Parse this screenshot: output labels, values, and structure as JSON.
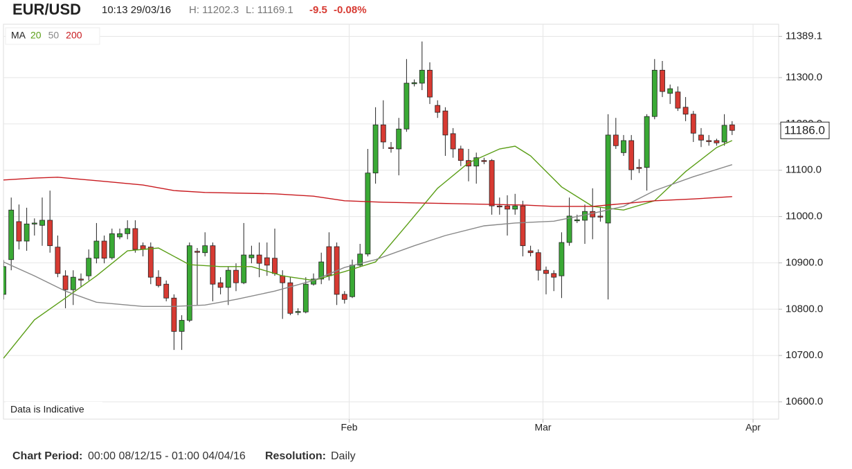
{
  "header": {
    "symbol": "EUR/USD",
    "datetime": "10:13 29/03/16",
    "high": "H: 11202.3",
    "low": "L: 11169.1",
    "change": "-9.5",
    "change_pct": "-0.08%"
  },
  "chart_data": {
    "type": "candlestick",
    "up_color": "#3aa935",
    "down_color": "#d73a32",
    "open": [
      10832,
      10907,
      10989,
      10947,
      10984,
      10981,
      10992,
      10934,
      10872,
      10842,
      10865,
      10872,
      10910,
      10947,
      10911,
      10956,
      10963,
      10974,
      10937,
      10934,
      10869,
      10854,
      10824,
      10752,
      10776,
      10925,
      10922,
      10937,
      10857,
      10847,
      10884,
      10857,
      10911,
      10917,
      10911,
      10910,
      10872,
      10857,
      10794,
      10794,
      10854,
      10865,
      10935,
      10935,
      10832,
      10827,
      10895,
      10919,
      11094,
      11198,
      11149,
      11146,
      11189,
      11288,
      11288,
      11316,
      11240,
      11228,
      11179,
      11146,
      11121,
      11109,
      11121,
      11121,
      11023,
      11023,
      11016,
      11023,
      10926,
      10922,
      10884,
      10877,
      10872,
      10944,
      10992,
      10992,
      11011,
      11001,
      10986,
      11176,
      11138,
      11164,
      11106,
      11106,
      11216,
      11316,
      11266,
      11269,
      11236,
      11221,
      11176,
      11164,
      11164,
      11161,
      11198
    ],
    "high": [
      10906,
      11041,
      11026,
      11019,
      10996,
      11041,
      11056,
      10959,
      10884,
      10884,
      10877,
      10929,
      10986,
      10959,
      10974,
      10974,
      10992,
      10992,
      10944,
      10944,
      10884,
      10862,
      10832,
      10787,
      10944,
      10932,
      10966,
      10944,
      10869,
      10892,
      10899,
      10986,
      10937,
      10944,
      10944,
      10974,
      10884,
      10869,
      10802,
      10869,
      10877,
      10922,
      10966,
      10944,
      10839,
      10907,
      10941,
      11146,
      11236,
      11251,
      11161,
      11213,
      11340,
      11296,
      11378,
      11333,
      11251,
      11236,
      11191,
      11153,
      11146,
      11138,
      11127,
      11124,
      11041,
      11046,
      11049,
      11034,
      10937,
      10929,
      10892,
      10884,
      10966,
      11041,
      11004,
      11026,
      11061,
      11019,
      11221,
      11213,
      11176,
      11176,
      11124,
      11221,
      11340,
      11336,
      11285,
      11281,
      11258,
      11228,
      11191,
      11176,
      11168,
      11221,
      11206
    ],
    "low": [
      10821,
      10884,
      10929,
      10926,
      10959,
      10937,
      10922,
      10869,
      10802,
      10809,
      10847,
      10862,
      10899,
      10899,
      10907,
      10951,
      10951,
      10922,
      10914,
      10854,
      10847,
      10817,
      10712,
      10712,
      10772,
      10809,
      10914,
      10817,
      10832,
      10809,
      10839,
      10854,
      10899,
      10869,
      10872,
      10872,
      10779,
      10787,
      10787,
      10791,
      10851,
      10854,
      10862,
      10809,
      10812,
      10824,
      10892,
      10914,
      11071,
      11146,
      11138,
      11089,
      11183,
      11281,
      11273,
      11243,
      11213,
      11131,
      11127,
      11109,
      11076,
      11071,
      11113,
      11004,
      11004,
      10959,
      11004,
      10914,
      10914,
      10862,
      10832,
      10839,
      10824,
      10937,
      10986,
      10941,
      10951,
      10989,
      10821,
      11146,
      11131,
      11079,
      11094,
      11056,
      11210,
      11258,
      11243,
      11228,
      11206,
      11161,
      11150,
      11153,
      11153,
      11153,
      11176
    ],
    "close": [
      10892,
      11014,
      10947,
      10984,
      10986,
      10992,
      10937,
      10877,
      10842,
      10869,
      10864,
      10910,
      10947,
      10910,
      10963,
      10963,
      10974,
      10929,
      10929,
      10869,
      10851,
      10824,
      10752,
      10776,
      10937,
      10924,
      10937,
      10854,
      10847,
      10884,
      10857,
      10917,
      10917,
      10899,
      10895,
      10877,
      10857,
      10791,
      10795,
      10854,
      10865,
      10902,
      10872,
      10832,
      10821,
      10895,
      10919,
      11094,
      11198,
      11161,
      11148,
      11189,
      11288,
      11289,
      11316,
      11258,
      11225,
      11176,
      11146,
      11121,
      11109,
      11127,
      11120,
      11023,
      11022,
      11016,
      11023,
      10937,
      10922,
      10884,
      10877,
      10869,
      10944,
      11001,
      10993,
      11011,
      10999,
      11000,
      11176,
      11153,
      11164,
      11101,
      11105,
      11216,
      11316,
      11270,
      11276,
      11234,
      11221,
      11180,
      11165,
      11163,
      11159,
      11197,
      11186
    ],
    "xlim": [
      0,
      100
    ],
    "xticks": [
      {
        "value": 44.6,
        "label": "Feb"
      },
      {
        "value": 69.6,
        "label": "Mar"
      },
      {
        "value": 96.7,
        "label": "Apr"
      }
    ],
    "ylim": [
      10562.6,
      11415.2
    ],
    "yticks": [
      11389.1,
      {
        "value": 11300,
        "label": "11300.0"
      },
      {
        "value": 11200,
        "label": "11200.0"
      },
      {
        "value": 11100,
        "label": "11100.0"
      },
      {
        "value": 11000,
        "label": "11000.0"
      },
      {
        "value": 10900,
        "label": "10900.0"
      },
      {
        "value": 10800,
        "label": "10800.0"
      },
      {
        "value": 10700,
        "label": "10700.0"
      },
      {
        "value": 10600,
        "label": "10600.0"
      }
    ],
    "grid": true,
    "legend_title": "MA",
    "series": [
      {
        "name": "20",
        "color": "#5a9e16",
        "x": [
          0,
          4,
          8,
          12,
          16,
          20,
          24,
          28,
          32,
          36,
          40,
          44,
          48,
          52,
          56,
          60,
          64,
          66,
          68,
          72,
          76,
          80,
          84,
          88,
          92,
          94
        ],
        "values": [
          10694,
          10777,
          10824,
          10872,
          10926,
          10932,
          10896,
          10892,
          10892,
          10872,
          10862,
          10881,
          10902,
          10981,
          11061,
          11116,
          11146,
          11152,
          11131,
          11064,
          11022,
          11014,
          11034,
          11097,
          11149,
          11164
        ]
      },
      {
        "name": "50",
        "color": "#888888",
        "x": [
          0,
          4,
          8,
          12,
          18,
          22,
          26,
          30,
          35,
          40,
          44,
          48,
          53,
          57,
          62,
          66,
          71,
          76,
          80,
          84,
          89,
          94
        ],
        "values": [
          10902,
          10872,
          10839,
          10815,
          10806,
          10806,
          10809,
          10821,
          10839,
          10862,
          10890,
          10907,
          10937,
          10959,
          10980,
          10986,
          10990,
          11007,
          11022,
          11056,
          11086,
          11112
        ]
      },
      {
        "name": "200",
        "color": "#c8191e",
        "x": [
          0,
          4,
          7,
          13,
          18,
          22,
          26,
          35,
          40,
          44,
          49,
          58,
          67,
          71,
          76,
          80,
          84,
          89,
          94
        ],
        "values": [
          11079,
          11083,
          11085,
          11076,
          11068,
          11056,
          11052,
          11049,
          11044,
          11034,
          11031,
          11028,
          11025,
          11022,
          11022,
          11028,
          11034,
          11038,
          11043
        ]
      }
    ],
    "last_value": {
      "value": 11186,
      "label": "11186.0"
    },
    "annotation": "Data is Indicative"
  },
  "footer": {
    "period_label": "Chart Period:",
    "period": "00:00 08/12/15 - 01:00 04/04/16",
    "resolution_label": "Resolution:",
    "resolution": "Daily"
  }
}
